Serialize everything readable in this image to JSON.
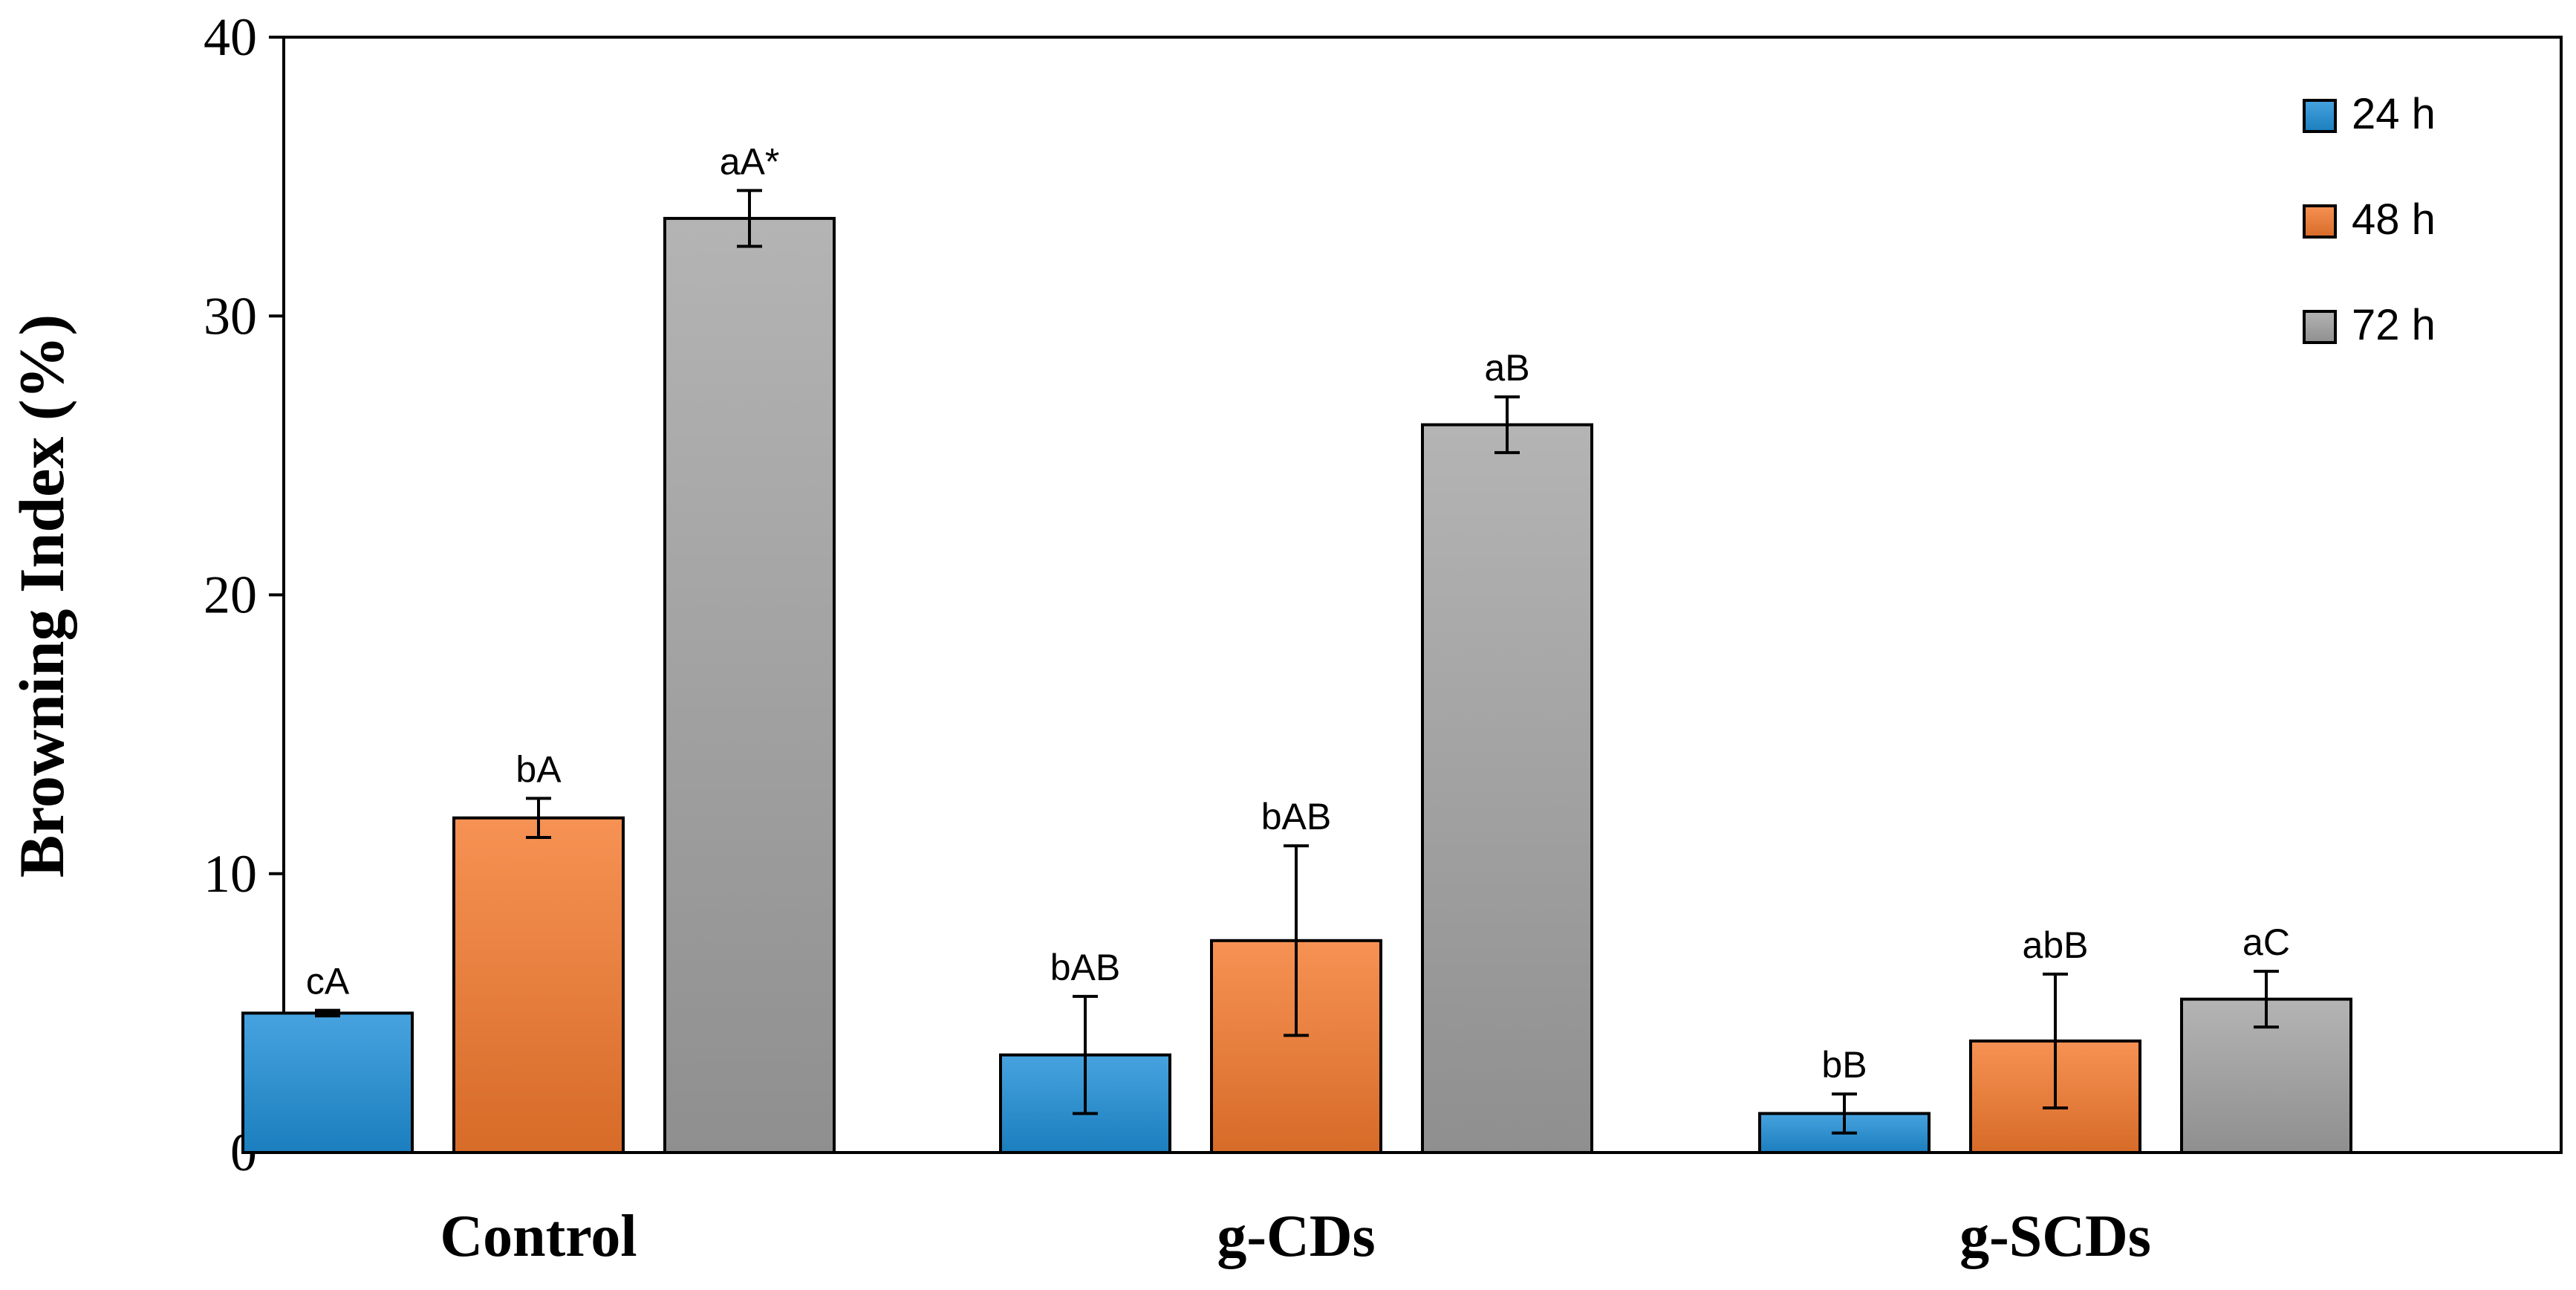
{
  "chart_data": {
    "type": "bar",
    "title": "",
    "xlabel": "",
    "ylabel": "Browning Index (%)",
    "ylim": [
      0,
      40
    ],
    "yticks": [
      0,
      10,
      20,
      30,
      40
    ],
    "grid": false,
    "legend_position": "top-right",
    "categories": [
      "Control",
      "g-CDs",
      "g-SCDs"
    ],
    "series": [
      {
        "name": "24 h",
        "color": "#1f8fd8",
        "values": [
          5.0,
          3.5,
          1.4
        ],
        "errors": [
          0.1,
          2.1,
          0.7
        ],
        "labels": [
          "cA",
          "bAB",
          "bB"
        ]
      },
      {
        "name": "48 h",
        "color": "#f47a2e",
        "values": [
          12.0,
          7.6,
          4.0
        ],
        "errors": [
          0.7,
          3.4,
          2.4
        ],
        "labels": [
          "bA",
          "bAB",
          "abB"
        ]
      },
      {
        "name": "72 h",
        "color": "#a3a3a3",
        "values": [
          33.5,
          26.1,
          5.5
        ],
        "errors": [
          1.0,
          1.0,
          1.0
        ],
        "labels": [
          "aA*",
          "aB",
          "aC"
        ]
      }
    ]
  }
}
